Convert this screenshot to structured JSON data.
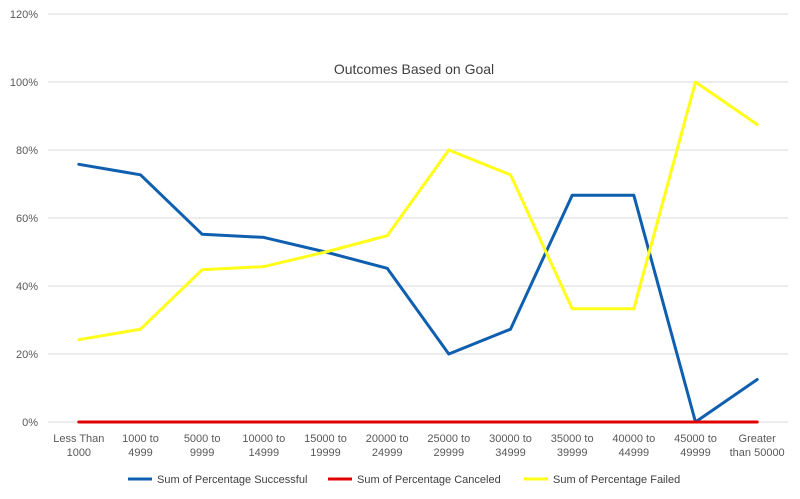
{
  "chart_data": {
    "type": "line",
    "title": "Outcomes Based on Goal",
    "xlabel": "",
    "ylabel": "",
    "categories": [
      [
        "Less Than",
        "1000"
      ],
      [
        "1000 to",
        "4999"
      ],
      [
        "5000 to",
        "9999"
      ],
      [
        "10000 to",
        "14999"
      ],
      [
        "15000 to",
        "19999"
      ],
      [
        "20000 to",
        "24999"
      ],
      [
        "25000 to",
        "29999"
      ],
      [
        "30000 to",
        "34999"
      ],
      [
        "35000 to",
        "39999"
      ],
      [
        "40000 to",
        "44999"
      ],
      [
        "45000 to",
        "49999"
      ],
      [
        "Greater",
        "than 50000"
      ]
    ],
    "ylim": [
      0,
      120
    ],
    "yticks": [
      0,
      20,
      40,
      60,
      80,
      100,
      120
    ],
    "ytick_labels": [
      "0%",
      "20%",
      "40%",
      "60%",
      "80%",
      "100%",
      "120%"
    ],
    "grid": true,
    "legend_position": "bottom",
    "series": [
      {
        "name": "Sum of Percentage Successful",
        "color": "#0f5fb0",
        "values": [
          75.8,
          72.7,
          55.2,
          54.3,
          50.0,
          45.2,
          20.0,
          27.3,
          66.7,
          66.7,
          0,
          12.5
        ]
      },
      {
        "name": "Sum of Percentage Canceled",
        "color": "#e00000",
        "values": [
          0,
          0,
          0,
          0,
          0,
          0,
          0,
          0,
          0,
          0,
          0,
          0
        ]
      },
      {
        "name": "Sum of Percentage Failed",
        "color": "#ffff1a",
        "values": [
          24.2,
          27.3,
          44.8,
          45.7,
          50.0,
          54.8,
          80.0,
          72.7,
          33.3,
          33.3,
          100,
          87.5
        ]
      }
    ]
  }
}
